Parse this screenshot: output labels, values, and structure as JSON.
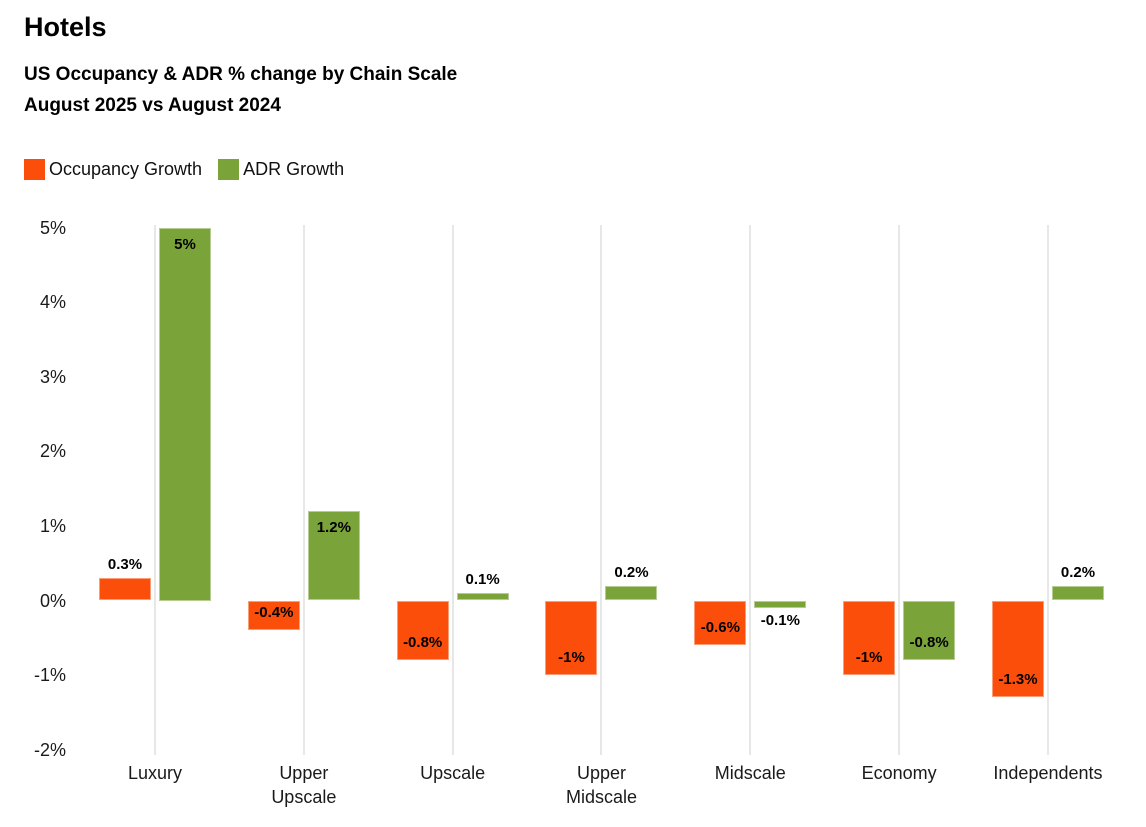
{
  "page": {
    "title": "Hotels",
    "subtitle_line1": "US Occupancy & ADR % change by Chain Scale",
    "subtitle_line2": "August 2025 vs August 2024"
  },
  "legend": {
    "items": [
      {
        "label": "Occupancy Growth",
        "color": "#FB4E0A"
      },
      {
        "label": "ADR Growth",
        "color": "#7AA33A"
      }
    ]
  },
  "colors": {
    "occupancy": "#FB4E0A",
    "adr": "#7AA33A",
    "gridline": "#e7e7e7",
    "text": "#1a1a1a"
  },
  "chart_data": {
    "type": "bar",
    "title": "US Occupancy & ADR % change by Chain Scale",
    "subtitle": "August 2025 vs August 2024",
    "categories": [
      "Luxury",
      "Upper Upscale",
      "Upscale",
      "Upper Midscale",
      "Midscale",
      "Economy",
      "Independents"
    ],
    "category_lines": [
      [
        "Luxury"
      ],
      [
        "Upper",
        "Upscale"
      ],
      [
        "Upscale"
      ],
      [
        "Upper",
        "Midscale"
      ],
      [
        "Midscale"
      ],
      [
        "Economy"
      ],
      [
        "Independents"
      ]
    ],
    "series": [
      {
        "name": "Occupancy Growth",
        "color": "#FB4E0A",
        "values": [
          0.3,
          -0.4,
          -0.8,
          -1,
          -0.6,
          -1,
          -1.3
        ],
        "labels": [
          "0.3%",
          "-0.4%",
          "-0.8%",
          "-1%",
          "-0.6%",
          "-1%",
          "-1.3%"
        ]
      },
      {
        "name": "ADR Growth",
        "color": "#7AA33A",
        "values": [
          5,
          1.2,
          0.1,
          0.2,
          -0.1,
          -0.8,
          0.2
        ],
        "labels": [
          "5%",
          "1.2%",
          "0.1%",
          "0.2%",
          "-0.1%",
          "-0.8%",
          "0.2%"
        ]
      }
    ],
    "y_axis": {
      "tick_labels": [
        "5%",
        "4%",
        "3%",
        "2%",
        "1%",
        "0%",
        "-1%",
        "-2%"
      ],
      "tick_values": [
        5,
        4,
        3,
        2,
        1,
        0,
        -1,
        -2
      ],
      "min": -2,
      "max": 5
    },
    "grid": "vertical lines at each category center, no horizontal gridlines, no zero axis line",
    "legend_position": "top-left",
    "data_label_style": "bold black; inside bar when tall enough, otherwise just outside bar end"
  }
}
